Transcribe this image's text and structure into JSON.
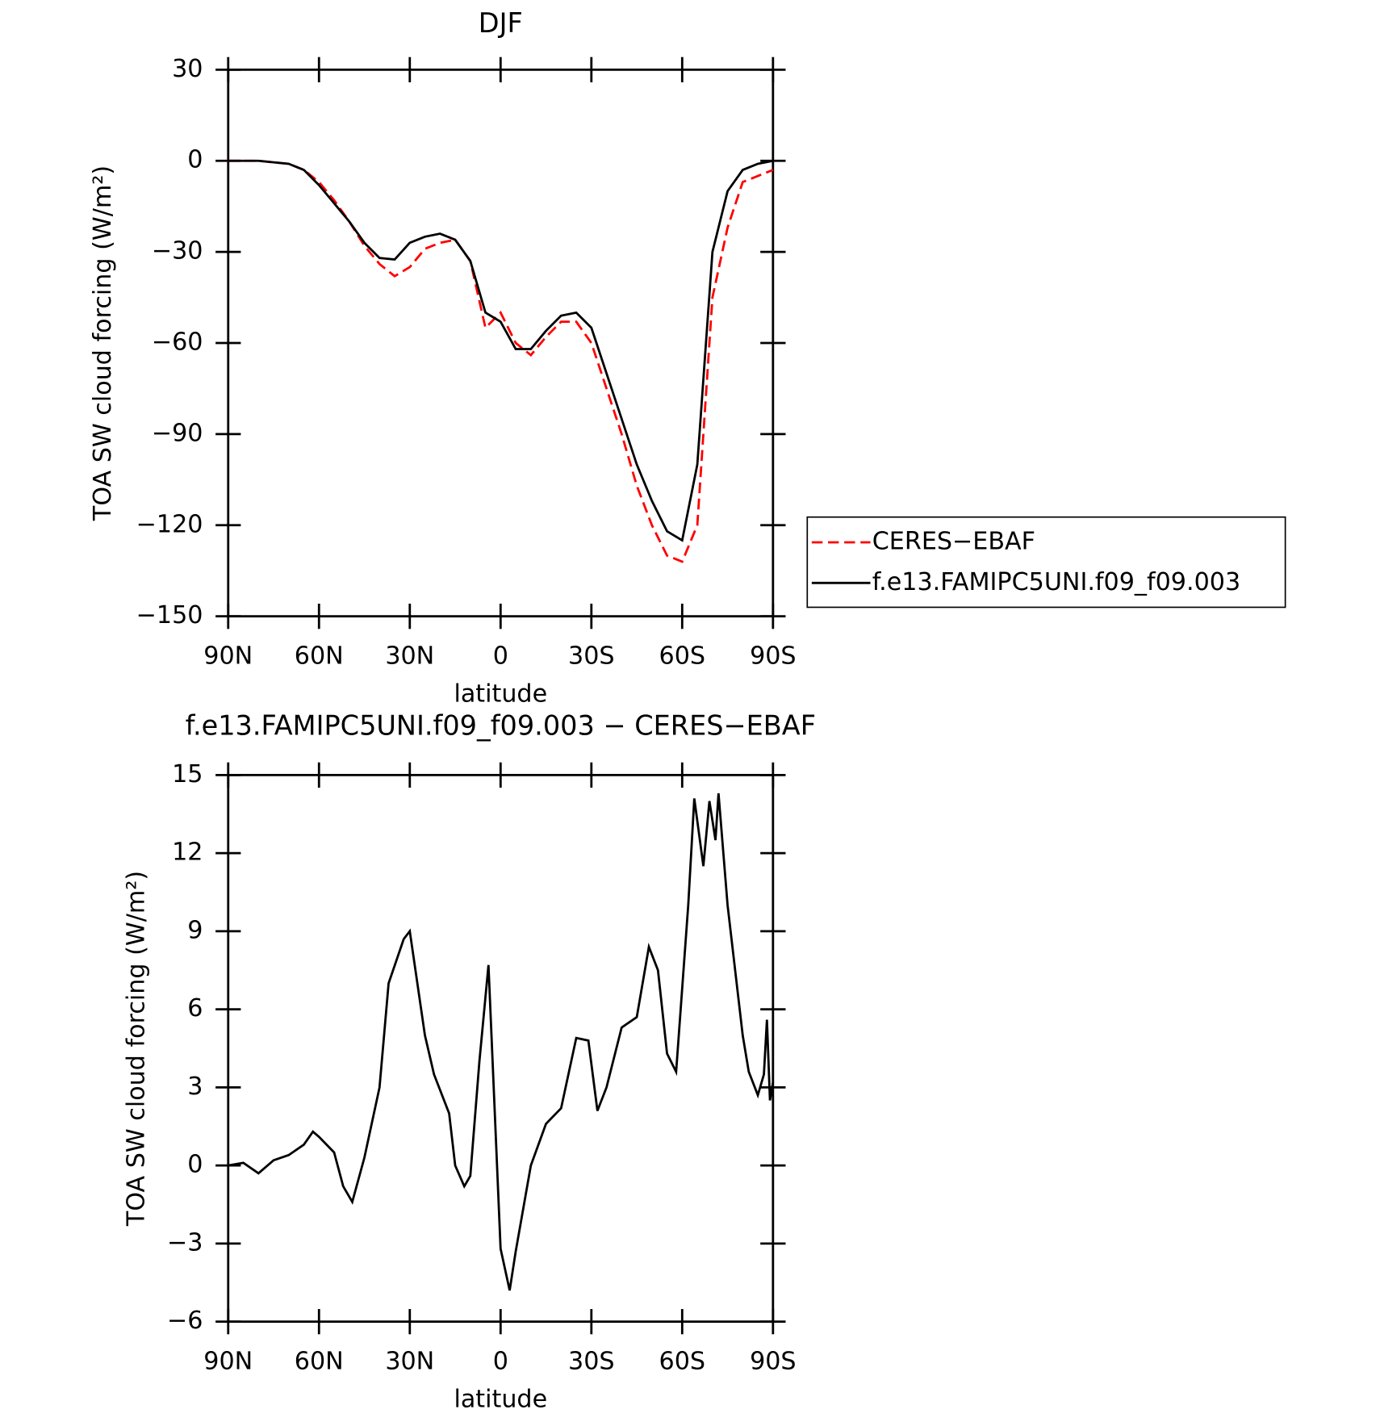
{
  "chart_data": [
    {
      "type": "line",
      "title": "DJF",
      "x_label": "latitude",
      "y_label": "TOA SW cloud forcing (W/m²)",
      "x": [
        90,
        85,
        80,
        75,
        70,
        65,
        60,
        55,
        50,
        45,
        40,
        35,
        30,
        25,
        20,
        15,
        10,
        5,
        0,
        -5,
        -10,
        -15,
        -20,
        -25,
        -30,
        -35,
        -40,
        -45,
        -50,
        -55,
        -60,
        -65,
        -70,
        -75,
        -80,
        -85,
        -90
      ],
      "series": [
        {
          "name": "CERES−EBAF",
          "color": "#ff0000",
          "dash": true,
          "values": [
            0,
            0,
            0,
            -0.5,
            -1,
            -3,
            -7,
            -13,
            -20,
            -28,
            -34,
            -38,
            -35,
            -29,
            -27,
            -26,
            -33,
            -55,
            -50,
            -60,
            -64,
            -58,
            -53,
            -53,
            -60,
            -75,
            -90,
            -107,
            -120,
            -130,
            -132,
            -120,
            -45,
            -22,
            -7,
            -5,
            -3
          ]
        },
        {
          "name": "f.e13.FAMIPC5UNI.f09_f09.003",
          "color": "#000000",
          "dash": false,
          "values": [
            0,
            0,
            0,
            -0.5,
            -1,
            -3,
            -8,
            -14,
            -20,
            -27,
            -32,
            -32.5,
            -27,
            -25,
            -24,
            -26,
            -33,
            -50,
            -53,
            -62,
            -62,
            -56,
            -51,
            -50,
            -55,
            -70,
            -85,
            -100,
            -112,
            -122,
            -125,
            -100,
            -30,
            -10,
            -3,
            -1,
            0
          ]
        }
      ],
      "xlim": [
        90,
        -90
      ],
      "xticks": [
        {
          "value": 90,
          "label": "90N"
        },
        {
          "value": 60,
          "label": "60N"
        },
        {
          "value": 30,
          "label": "30N"
        },
        0,
        {
          "value": -30,
          "label": "30S"
        },
        {
          "value": -60,
          "label": "60S"
        },
        {
          "value": -90,
          "label": "90S"
        }
      ],
      "ylim": [
        -150,
        30
      ],
      "yticks": [
        {
          "value": -150,
          "label": "−150"
        },
        {
          "value": -120,
          "label": "−120"
        },
        {
          "value": -90,
          "label": "−90"
        },
        {
          "value": -60,
          "label": "−60"
        },
        {
          "value": -30,
          "label": "−30"
        },
        0,
        30
      ],
      "legend": "outside right"
    },
    {
      "type": "line",
      "title": "f.e13.FAMIPC5UNI.f09_f09.003 − CERES−EBAF",
      "x_label": "latitude",
      "y_label": "TOA SW cloud forcing (W/m²)",
      "x": [
        90,
        85,
        80,
        75,
        70,
        65,
        62,
        60,
        55,
        52,
        49,
        45,
        40,
        37,
        32,
        30,
        25,
        22,
        17,
        15,
        12,
        10,
        7,
        4,
        0,
        -3,
        -5,
        -10,
        -15,
        -20,
        -25,
        -29,
        -32,
        -35,
        -40,
        -45,
        -49,
        -52,
        -55,
        -58,
        -62,
        -64,
        -67,
        -69,
        -71,
        -72,
        -75,
        -80,
        -82,
        -85,
        -87,
        -88,
        -89,
        -90
      ],
      "color": "#000000",
      "values": [
        0,
        0.1,
        -0.3,
        0.2,
        0.4,
        0.8,
        1.3,
        1.1,
        0.5,
        -0.8,
        -1.4,
        0.3,
        3,
        7,
        8.7,
        9,
        5,
        3.5,
        2,
        0,
        -0.8,
        -0.4,
        4,
        7.7,
        -3.2,
        -4.8,
        -3.3,
        0,
        1.6,
        2.2,
        4.9,
        4.8,
        2.1,
        3,
        5.3,
        5.7,
        8.4,
        7.5,
        4.3,
        3.6,
        10,
        14.1,
        11.5,
        14,
        12.5,
        14.3,
        10,
        5,
        3.6,
        2.7,
        3.5,
        5.6,
        2.5,
        3.2
      ],
      "xlim": [
        90,
        -90
      ],
      "xticks": [
        {
          "value": 90,
          "label": "90N"
        },
        {
          "value": 60,
          "label": "60N"
        },
        {
          "value": 30,
          "label": "30N"
        },
        0,
        {
          "value": -30,
          "label": "30S"
        },
        {
          "value": -60,
          "label": "60S"
        },
        {
          "value": -90,
          "label": "90S"
        }
      ],
      "ylim": [
        -6,
        15
      ],
      "yticks": [
        {
          "value": -6,
          "label": "−6"
        },
        {
          "value": -3,
          "label": "−3"
        },
        0,
        3,
        6,
        9,
        12,
        15
      ]
    }
  ]
}
